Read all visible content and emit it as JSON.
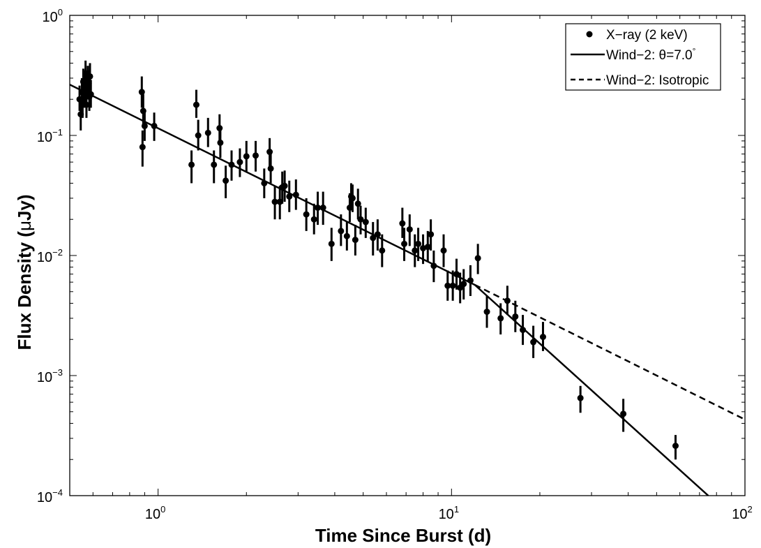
{
  "chart_data": {
    "type": "scatter",
    "xlabel": "Time Since Burst (d)",
    "ylabel_prefix": "Flux Density (",
    "ylabel_greek": "μ",
    "ylabel_suffix": "Jy)",
    "xscale": "log",
    "yscale": "log",
    "xlim": [
      0.5,
      100
    ],
    "ylim": [
      0.0001,
      1
    ],
    "grid": false,
    "legend_position": "top-right",
    "x_ticks": [
      {
        "base": "10",
        "exp": "0",
        "value": 1
      },
      {
        "base": "10",
        "exp": "1",
        "value": 10
      },
      {
        "base": "10",
        "exp": "2",
        "value": 100
      }
    ],
    "y_ticks": [
      {
        "base": "10",
        "exp": "0",
        "value": 1
      },
      {
        "base": "10",
        "exp": "−1",
        "value": 0.1
      },
      {
        "base": "10",
        "exp": "−2",
        "value": 0.01
      },
      {
        "base": "10",
        "exp": "−3",
        "value": 0.001
      },
      {
        "base": "10",
        "exp": "−4",
        "value": 0.0001
      }
    ],
    "legend": [
      {
        "marker": "dot",
        "label": "X−ray (2 keV)"
      },
      {
        "marker": "solid",
        "label_prefix": "Wind−2: ",
        "label_greek": "θ",
        "label_main": "=7.0",
        "label_sup": "°"
      },
      {
        "marker": "dashed",
        "label": "Wind−2: Isotropic"
      }
    ],
    "series": [
      {
        "name": "X−ray (2 keV)",
        "style": "points-with-errorbars",
        "color": "#000000",
        "points": [
          [
            0.54,
            0.2,
            0.16,
            0.26
          ],
          [
            0.545,
            0.15,
            0.11,
            0.2
          ],
          [
            0.55,
            0.23,
            0.18,
            0.3
          ],
          [
            0.553,
            0.19,
            0.14,
            0.25
          ],
          [
            0.556,
            0.28,
            0.22,
            0.36
          ],
          [
            0.56,
            0.22,
            0.17,
            0.29
          ],
          [
            0.563,
            0.25,
            0.19,
            0.33
          ],
          [
            0.566,
            0.33,
            0.26,
            0.42
          ],
          [
            0.57,
            0.18,
            0.14,
            0.24
          ],
          [
            0.573,
            0.26,
            0.2,
            0.34
          ],
          [
            0.576,
            0.3,
            0.23,
            0.38
          ],
          [
            0.58,
            0.27,
            0.21,
            0.35
          ],
          [
            0.583,
            0.21,
            0.16,
            0.28
          ],
          [
            0.586,
            0.31,
            0.24,
            0.4
          ],
          [
            0.59,
            0.22,
            0.17,
            0.29
          ],
          [
            0.88,
            0.23,
            0.17,
            0.31
          ],
          [
            0.885,
            0.08,
            0.055,
            0.11
          ],
          [
            0.89,
            0.16,
            0.12,
            0.22
          ],
          [
            0.9,
            0.12,
            0.09,
            0.16
          ],
          [
            0.97,
            0.12,
            0.09,
            0.155
          ],
          [
            1.3,
            0.057,
            0.04,
            0.075
          ],
          [
            1.35,
            0.18,
            0.14,
            0.24
          ],
          [
            1.37,
            0.1,
            0.075,
            0.135
          ],
          [
            1.48,
            0.105,
            0.08,
            0.14
          ],
          [
            1.55,
            0.057,
            0.04,
            0.075
          ],
          [
            1.62,
            0.115,
            0.09,
            0.15
          ],
          [
            1.63,
            0.087,
            0.065,
            0.115
          ],
          [
            1.7,
            0.042,
            0.03,
            0.056
          ],
          [
            1.78,
            0.057,
            0.042,
            0.075
          ],
          [
            1.9,
            0.06,
            0.045,
            0.078
          ],
          [
            2.0,
            0.067,
            0.05,
            0.09
          ],
          [
            2.15,
            0.068,
            0.05,
            0.09
          ],
          [
            2.3,
            0.04,
            0.03,
            0.053
          ],
          [
            2.4,
            0.073,
            0.055,
            0.095
          ],
          [
            2.42,
            0.053,
            0.04,
            0.07
          ],
          [
            2.5,
            0.028,
            0.02,
            0.038
          ],
          [
            2.6,
            0.028,
            0.02,
            0.038
          ],
          [
            2.65,
            0.037,
            0.027,
            0.05
          ],
          [
            2.7,
            0.038,
            0.028,
            0.051
          ],
          [
            2.8,
            0.031,
            0.023,
            0.042
          ],
          [
            2.95,
            0.032,
            0.024,
            0.043
          ],
          [
            3.2,
            0.022,
            0.016,
            0.03
          ],
          [
            3.4,
            0.02,
            0.015,
            0.027
          ],
          [
            3.5,
            0.025,
            0.018,
            0.034
          ],
          [
            3.65,
            0.025,
            0.018,
            0.034
          ],
          [
            3.9,
            0.0125,
            0.009,
            0.017
          ],
          [
            4.2,
            0.016,
            0.012,
            0.022
          ],
          [
            4.4,
            0.0145,
            0.011,
            0.019
          ],
          [
            4.5,
            0.025,
            0.019,
            0.033
          ],
          [
            4.55,
            0.031,
            0.024,
            0.04
          ],
          [
            4.6,
            0.03,
            0.023,
            0.039
          ],
          [
            4.7,
            0.0135,
            0.01,
            0.018
          ],
          [
            4.8,
            0.027,
            0.02,
            0.036
          ],
          [
            4.9,
            0.02,
            0.015,
            0.026
          ],
          [
            5.1,
            0.019,
            0.014,
            0.025
          ],
          [
            5.4,
            0.014,
            0.01,
            0.019
          ],
          [
            5.6,
            0.015,
            0.011,
            0.02
          ],
          [
            5.8,
            0.011,
            0.008,
            0.015
          ],
          [
            6.8,
            0.0185,
            0.014,
            0.025
          ],
          [
            6.9,
            0.0125,
            0.009,
            0.017
          ],
          [
            7.2,
            0.0165,
            0.012,
            0.022
          ],
          [
            7.5,
            0.011,
            0.008,
            0.015
          ],
          [
            7.7,
            0.0125,
            0.009,
            0.017
          ],
          [
            8.0,
            0.0115,
            0.0085,
            0.015
          ],
          [
            8.3,
            0.0118,
            0.0088,
            0.016
          ],
          [
            8.5,
            0.015,
            0.011,
            0.02
          ],
          [
            8.7,
            0.0082,
            0.006,
            0.011
          ],
          [
            9.4,
            0.011,
            0.008,
            0.015
          ],
          [
            9.7,
            0.0056,
            0.0042,
            0.0075
          ],
          [
            10.1,
            0.0056,
            0.0042,
            0.0075
          ],
          [
            10.4,
            0.007,
            0.0052,
            0.0094
          ],
          [
            10.7,
            0.0054,
            0.004,
            0.0072
          ],
          [
            11.0,
            0.0058,
            0.0043,
            0.0077
          ],
          [
            11.6,
            0.0062,
            0.0046,
            0.0083
          ],
          [
            12.3,
            0.0095,
            0.007,
            0.0125
          ],
          [
            13.2,
            0.0034,
            0.0025,
            0.0046
          ],
          [
            14.7,
            0.003,
            0.0022,
            0.004
          ],
          [
            15.5,
            0.0042,
            0.0032,
            0.0056
          ],
          [
            16.5,
            0.0031,
            0.0023,
            0.0042
          ],
          [
            17.5,
            0.0024,
            0.0018,
            0.0032
          ],
          [
            19.0,
            0.0019,
            0.0014,
            0.0026
          ],
          [
            20.5,
            0.0021,
            0.0016,
            0.0028
          ],
          [
            27.5,
            0.00065,
            0.00049,
            0.00082
          ],
          [
            38.5,
            0.00048,
            0.00034,
            0.00064
          ],
          [
            58.0,
            0.00026,
            0.0002,
            0.00032
          ]
        ]
      },
      {
        "name": "Wind−2: θ=7.0°",
        "style": "solid-line",
        "color": "#000000",
        "points": [
          [
            0.5,
            0.265
          ],
          [
            12.0,
            0.0057
          ],
          [
            75.0,
            0.0001
          ]
        ]
      },
      {
        "name": "Wind−2: Isotropic",
        "style": "dashed-line",
        "color": "#000000",
        "points": [
          [
            12.0,
            0.0057
          ],
          [
            100.0,
            0.00043
          ]
        ]
      }
    ]
  }
}
